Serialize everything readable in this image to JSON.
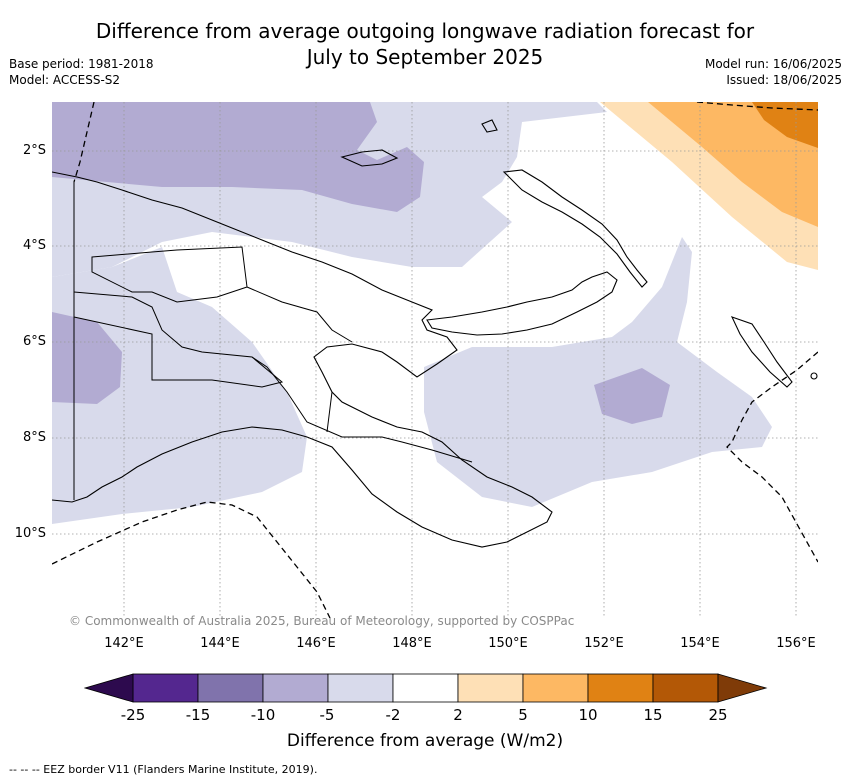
{
  "title": {
    "line1": "Difference from average outgoing longwave radiation forecast for",
    "line2": "July to September 2025"
  },
  "meta_left": {
    "base_period": "Base period: 1981-2018",
    "model": "Model: ACCESS-S2"
  },
  "meta_right": {
    "model_run": "Model run: 16/06/2025",
    "issued": "Issued: 18/06/2025"
  },
  "map": {
    "region": "Papua New Guinea",
    "lat_labels": [
      "2°S",
      "4°S",
      "6°S",
      "8°S",
      "10°S"
    ],
    "lon_labels": [
      "142°E",
      "144°E",
      "146°E",
      "148°E",
      "150°E",
      "152°E",
      "154°E",
      "156°E"
    ],
    "gridlines": true,
    "copyright": "© Commonwealth of Australia 2025, Bureau of Meteorology, supported by COSPPac"
  },
  "colorbar": {
    "labels": [
      "-25",
      "-15",
      "-10",
      "-5",
      "-2",
      "2",
      "5",
      "10",
      "15",
      "25"
    ],
    "colors": {
      "lt_-25": "#2d0a4e",
      "-25_-15": "#54278f",
      "-15_-10": "#8073ac",
      "-10_-5": "#b2abd2",
      "-5_-2": "#d8daeb",
      "-2_2": "#ffffff",
      "2_5": "#fee0b6",
      "5_10": "#fdb863",
      "10_15": "#e08214",
      "15_25": "#b35806",
      "gt_25": "#7f3b08"
    },
    "title": "Difference from average (W/m2)"
  },
  "legend_note": "--  --  -- EEZ border V11 (Flanders Marine Institute, 2019)."
}
